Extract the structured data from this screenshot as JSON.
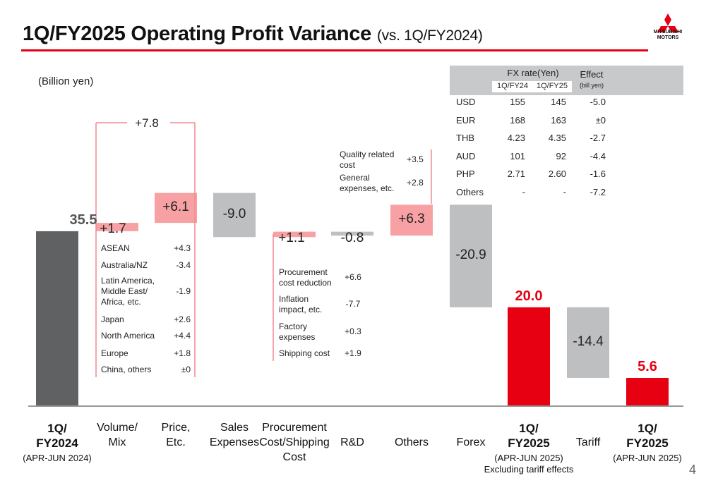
{
  "title": {
    "main": "1Q/FY2025 Operating Profit Variance",
    "sub": "(vs. 1Q/FY2024)"
  },
  "logo": {
    "line1": "MITSUBISHI",
    "line2": "MOTORS"
  },
  "unit_label": "(Billion yen)",
  "page_number": "4",
  "colors": {
    "accent": "#e60012",
    "increase": "#f8a1a4",
    "decrease": "#bdbfc1",
    "base": "#5f6163",
    "result": "#e60012"
  },
  "chart_data": {
    "type": "waterfall",
    "unit": "Billion yen",
    "steps": [
      {
        "id": "base",
        "kind": "total",
        "value": 35.5,
        "label": "35.5"
      },
      {
        "id": "volume",
        "kind": "delta",
        "value": 1.7,
        "label": "+1.7"
      },
      {
        "id": "price",
        "kind": "delta",
        "value": 6.1,
        "label": "+6.1"
      },
      {
        "id": "sales",
        "kind": "delta",
        "value": -9.0,
        "label": "-9.0"
      },
      {
        "id": "procure",
        "kind": "delta",
        "value": 1.1,
        "label": "+1.1"
      },
      {
        "id": "rd",
        "kind": "delta",
        "value": -0.8,
        "label": "-0.8"
      },
      {
        "id": "others",
        "kind": "delta",
        "value": 6.3,
        "label": "+6.3"
      },
      {
        "id": "forex",
        "kind": "delta",
        "value": -20.9,
        "label": "-20.9"
      },
      {
        "id": "sub",
        "kind": "total",
        "value": 20.0,
        "label": "20.0"
      },
      {
        "id": "tariff",
        "kind": "delta",
        "value": -14.4,
        "label": "-14.4"
      },
      {
        "id": "final",
        "kind": "total",
        "value": 5.6,
        "label": "5.6"
      }
    ],
    "bracket": {
      "label": "+7.8"
    },
    "x_labels": [
      {
        "lines": [
          "1Q/",
          "FY2024"
        ],
        "sub": "(APR-JUN 2024)"
      },
      {
        "lines": [
          "Volume/",
          "Mix"
        ]
      },
      {
        "lines": [
          "Price,",
          "Etc."
        ]
      },
      {
        "lines": [
          "Sales",
          "Expenses"
        ]
      },
      {
        "lines": [
          "Procurement",
          "Cost/Shipping",
          "Cost"
        ]
      },
      {
        "lines": [
          "R&D"
        ]
      },
      {
        "lines": [
          "Others"
        ]
      },
      {
        "lines": [
          "Forex"
        ]
      },
      {
        "lines": [
          "1Q/",
          "FY2025"
        ],
        "sub": "(APR-JUN 2025)",
        "sub2": "Excluding tariff effects"
      },
      {
        "lines": [
          "Tariff"
        ]
      },
      {
        "lines": [
          "1Q/",
          "FY2025"
        ],
        "sub": "(APR-JUN 2025)"
      }
    ],
    "volume_breakdown": [
      {
        "label": "ASEAN",
        "value": "+4.3"
      },
      {
        "label": "Australia/NZ",
        "value": "-3.4"
      },
      {
        "label": "Latin America,\nMiddle East/\nAfrica, etc.",
        "value": "-1.9"
      },
      {
        "label": "Japan",
        "value": "+2.6"
      },
      {
        "label": "North America",
        "value": "+4.4"
      },
      {
        "label": "Europe",
        "value": "+1.8"
      },
      {
        "label": "China, others",
        "value": "±0"
      }
    ],
    "procurement_breakdown": [
      {
        "label": "Procurement\ncost reduction",
        "value": "+6.6"
      },
      {
        "label": "Inflation\nimpact, etc.",
        "value": "-7.7"
      },
      {
        "label": "Factory\nexpenses",
        "value": "+0.3"
      },
      {
        "label": "Shipping cost",
        "value": "+1.9"
      }
    ],
    "others_breakdown": [
      {
        "label": "Quality related\ncost",
        "value": "+3.5"
      },
      {
        "label": "General\nexpenses, etc.",
        "value": "+2.8"
      }
    ],
    "fx_table": {
      "header": {
        "rate": "FX rate(Yen)",
        "effect": "Effect",
        "col1": "1Q/FY24",
        "col2": "1Q/FY25",
        "effect_unit": "(bill yen)"
      },
      "rows": [
        {
          "currency": "USD",
          "fy24": "155",
          "fy25": "145",
          "effect": "-5.0"
        },
        {
          "currency": "EUR",
          "fy24": "168",
          "fy25": "163",
          "effect": "±0"
        },
        {
          "currency": "THB",
          "fy24": "4.23",
          "fy25": "4.35",
          "effect": "-2.7"
        },
        {
          "currency": "AUD",
          "fy24": "101",
          "fy25": "92",
          "effect": "-4.4"
        },
        {
          "currency": "PHP",
          "fy24": "2.71",
          "fy25": "2.60",
          "effect": "-1.6"
        },
        {
          "currency": "Others",
          "fy24": "-",
          "fy25": "-",
          "effect": "-7.2"
        }
      ]
    }
  }
}
